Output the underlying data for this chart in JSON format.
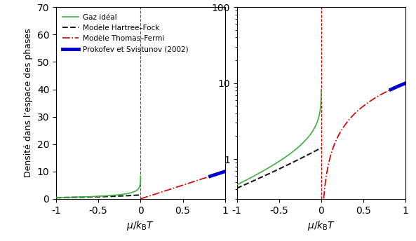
{
  "xlim": [
    -1,
    1
  ],
  "ylim_linear": [
    0,
    70
  ],
  "ylim_log": [
    0.3,
    100
  ],
  "xlabel": "$\\mu/k_{\\rm B} T$",
  "ylabel": "Densité dans l’espace des phases",
  "legend_labels": [
    "Gaz idéal",
    "Modèle Hartree–Fock",
    "Modèle Thomas–Fermi",
    "Prokofev et Svistunov (2002)"
  ],
  "g_tilde": 0.1,
  "C_PS": 380.0,
  "colors": {
    "ideal": "#3cb043",
    "hf": "#1a1a1a",
    "tf": "#cc0000",
    "ps": "#0000cc"
  },
  "vline_color_left": "#555555",
  "vline_color_right": "#cc0000",
  "linewidths": {
    "ideal": 1.2,
    "hf": 1.5,
    "tf": 1.2,
    "ps": 3.5
  },
  "xticks": [
    -1,
    -0.5,
    0,
    0.5,
    1
  ],
  "yticks_linear": [
    0,
    10,
    20,
    30,
    40,
    50,
    60,
    70
  ],
  "figsize": [
    5.93,
    3.44
  ],
  "dpi": 100
}
